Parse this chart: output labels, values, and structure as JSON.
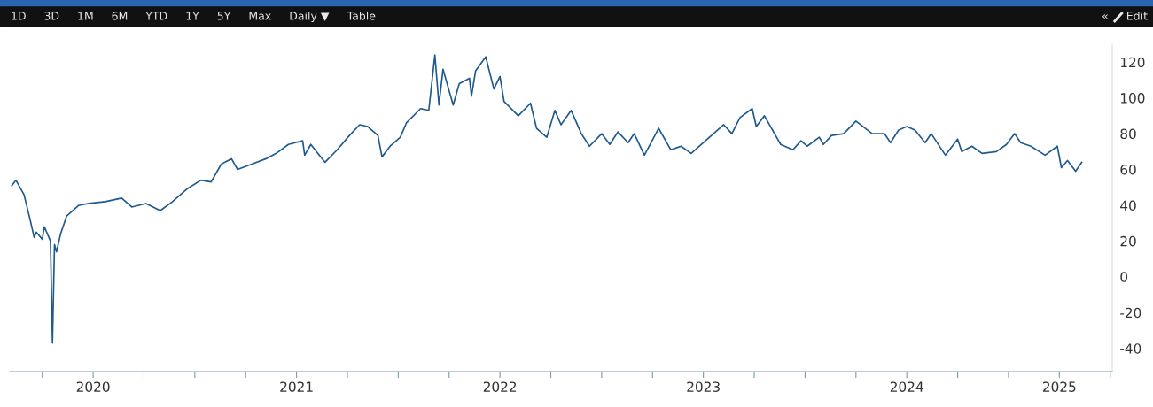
{
  "chart_data": {
    "type": "line",
    "annotations": [
      "1D",
      "3D",
      "1M",
      "6M",
      "YTD",
      "1Y",
      "5Y",
      "Max",
      "Daily ▼",
      "Table",
      "«",
      "Edit"
    ],
    "x": [
      2020.1,
      2020.12,
      2020.16,
      2020.19,
      2020.21,
      2020.22,
      2020.25,
      2020.26,
      2020.29,
      2020.3,
      2020.31,
      2020.32,
      2020.34,
      2020.37,
      2020.43,
      2020.48,
      2020.56,
      2020.64,
      2020.69,
      2020.76,
      2020.83,
      2020.89,
      2020.96,
      2021.03,
      2021.08,
      2021.13,
      2021.18,
      2021.21,
      2021.28,
      2021.35,
      2021.4,
      2021.46,
      2021.53,
      2021.54,
      2021.57,
      2021.64,
      2021.7,
      2021.76,
      2021.81,
      2021.85,
      2021.9,
      2021.92,
      2021.96,
      2022.01,
      2022.04,
      2022.11,
      2022.15,
      2022.18,
      2022.2,
      2022.22,
      2022.27,
      2022.3,
      2022.35,
      2022.36,
      2022.38,
      2022.43,
      2022.47,
      2022.5,
      2022.52,
      2022.59,
      2022.65,
      2022.68,
      2022.73,
      2022.77,
      2022.8,
      2022.85,
      2022.9,
      2022.94,
      2023.0,
      2023.04,
      2023.08,
      2023.13,
      2023.16,
      2023.21,
      2023.28,
      2023.34,
      2023.39,
      2023.44,
      2023.52,
      2023.6,
      2023.64,
      2023.68,
      2023.74,
      2023.76,
      2023.8,
      2023.86,
      2023.88,
      2023.94,
      2023.98,
      2024.01,
      2024.07,
      2024.09,
      2024.13,
      2024.19,
      2024.25,
      2024.33,
      2024.39,
      2024.42,
      2024.46,
      2024.5,
      2024.54,
      2024.59,
      2024.62,
      2024.69,
      2024.75,
      2024.77,
      2024.82,
      2024.87,
      2024.94,
      2024.99,
      2025.03,
      2025.06,
      2025.11,
      2025.18,
      2025.24,
      2025.26,
      2025.29,
      2025.33,
      2025.36
    ],
    "values": [
      51,
      54,
      46,
      32,
      22,
      25,
      21,
      28,
      20,
      -37,
      18,
      14,
      24,
      34,
      40,
      41,
      42,
      44,
      39,
      41,
      37,
      42,
      49,
      54,
      53,
      63,
      66,
      60,
      63,
      66,
      69,
      74,
      76,
      68,
      74,
      64,
      71,
      79,
      85,
      84,
      79,
      67,
      73,
      78,
      86,
      94,
      93,
      124,
      96,
      116,
      96,
      108,
      111,
      101,
      115,
      123,
      105,
      112,
      98,
      90,
      97,
      83,
      78,
      93,
      85,
      93,
      80,
      73,
      80,
      74,
      81,
      75,
      80,
      68,
      83,
      71,
      73,
      69,
      77,
      85,
      80,
      89,
      94,
      84,
      90,
      78,
      74,
      71,
      76,
      73,
      78,
      74,
      79,
      80,
      87,
      80,
      80,
      75,
      82,
      84,
      82,
      75,
      80,
      68,
      77,
      70,
      73,
      69,
      70,
      74,
      80,
      75,
      73,
      68,
      73,
      61,
      65,
      59,
      64
    ],
    "color": "#1f5a8f",
    "xlim": [
      2020.09,
      2025.51
    ],
    "xticks": [
      {
        "value": 2020.25,
        "label": null
      },
      {
        "value": 2020.5,
        "label": "2020"
      },
      {
        "value": 2020.75,
        "label": null
      },
      {
        "value": 2021,
        "label": null
      },
      {
        "value": 2021.25,
        "label": null
      },
      {
        "value": 2021.5,
        "label": "2021"
      },
      {
        "value": 2021.75,
        "label": null
      },
      {
        "value": 2022,
        "label": null
      },
      {
        "value": 2022.25,
        "label": null
      },
      {
        "value": 2022.5,
        "label": "2022"
      },
      {
        "value": 2022.75,
        "label": null
      },
      {
        "value": 2023,
        "label": null
      },
      {
        "value": 2023.25,
        "label": null
      },
      {
        "value": 2023.5,
        "label": "2023"
      },
      {
        "value": 2023.75,
        "label": null
      },
      {
        "value": 2024,
        "label": null
      },
      {
        "value": 2024.25,
        "label": null
      },
      {
        "value": 2024.5,
        "label": "2024"
      },
      {
        "value": 2024.75,
        "label": null
      },
      {
        "value": 2025,
        "label": null
      },
      {
        "value": 2025.25,
        "label": "2025"
      },
      {
        "value": 2025.5,
        "label": null
      }
    ],
    "ylim": [
      -53,
      130
    ],
    "yticks": [
      -40,
      -20,
      0,
      20,
      40,
      60,
      80,
      100,
      120
    ],
    "grid": false
  }
}
